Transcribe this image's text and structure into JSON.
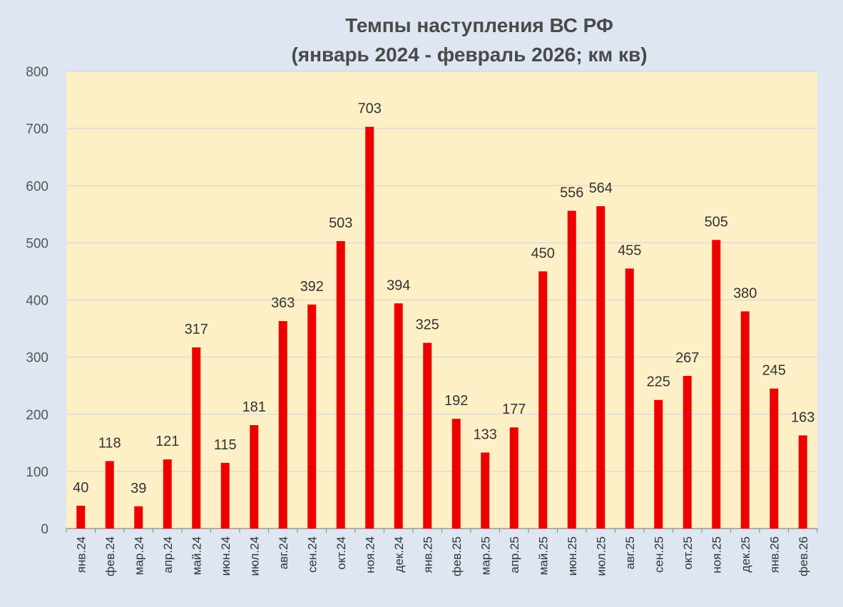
{
  "chart_data": {
    "type": "bar",
    "title": "Темпы наступления ВС РФ",
    "subtitle": "(январь 2024 - февраль 2026; км кв)",
    "xlabel": "",
    "ylabel": "",
    "ylim": [
      0,
      800
    ],
    "yticks": [
      0,
      100,
      200,
      300,
      400,
      500,
      600,
      700,
      800
    ],
    "grid": true,
    "legend": "none",
    "categories": [
      "янв.24",
      "фев.24",
      "мар.24",
      "апр.24",
      "май.24",
      "июн.24",
      "июл.24",
      "авг.24",
      "сен.24",
      "окт.24",
      "ноя.24",
      "дек.24",
      "янв.25",
      "фев.25",
      "мар.25",
      "апр.25",
      "май.25",
      "июн.25",
      "июл.25",
      "авг.25",
      "сен.25",
      "окт.25",
      "ноя.25",
      "дек.25",
      "янв.26",
      "фев.26"
    ],
    "values": [
      40,
      118,
      39,
      121,
      317,
      115,
      181,
      363,
      392,
      503,
      703,
      394,
      325,
      192,
      133,
      177,
      450,
      556,
      564,
      455,
      225,
      267,
      505,
      380,
      245,
      163
    ],
    "colors": {
      "bar": "#ee0000",
      "plot_background": "#fdf0c6",
      "page_background": "#dde6f1",
      "gridline": "#d8d8d8",
      "axis": "#888888"
    }
  }
}
